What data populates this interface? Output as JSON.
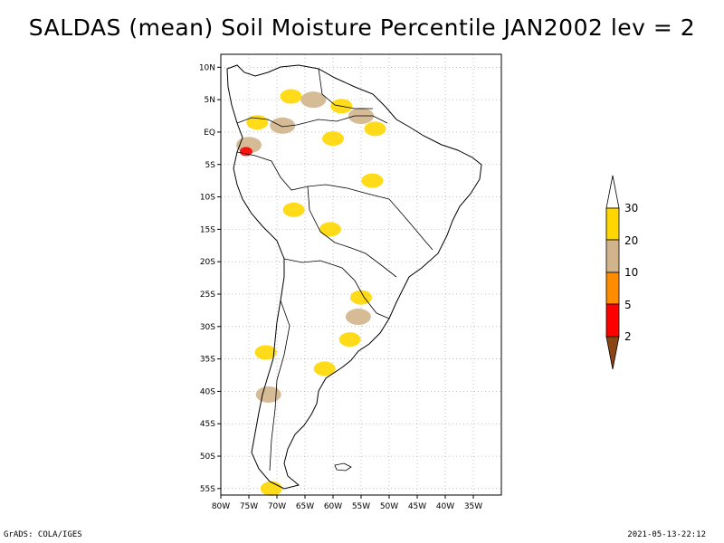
{
  "title": "SALDAS (mean) Soil Moisture Percentile JAN2002 lev = 2",
  "footer": {
    "left": "GrADS: COLA/IGES",
    "right": "2021-05-13-22:12"
  },
  "map": {
    "lon_range": [
      -80,
      -30
    ],
    "lat_range": [
      -56,
      12
    ],
    "x_ticks": [
      {
        "lon": -80,
        "label": "80W"
      },
      {
        "lon": -75,
        "label": "75W"
      },
      {
        "lon": -70,
        "label": "70W"
      },
      {
        "lon": -65,
        "label": "65W"
      },
      {
        "lon": -60,
        "label": "60W"
      },
      {
        "lon": -55,
        "label": "55W"
      },
      {
        "lon": -50,
        "label": "50W"
      },
      {
        "lon": -45,
        "label": "45W"
      },
      {
        "lon": -40,
        "label": "40W"
      },
      {
        "lon": -35,
        "label": "35W"
      }
    ],
    "y_ticks": [
      {
        "lat": 10,
        "label": "10N"
      },
      {
        "lat": 5,
        "label": "5N"
      },
      {
        "lat": 0,
        "label": "EQ"
      },
      {
        "lat": -5,
        "label": "5S"
      },
      {
        "lat": -10,
        "label": "10S"
      },
      {
        "lat": -15,
        "label": "15S"
      },
      {
        "lat": -20,
        "label": "20S"
      },
      {
        "lat": -25,
        "label": "25S"
      },
      {
        "lat": -30,
        "label": "30S"
      },
      {
        "lat": -35,
        "label": "35S"
      },
      {
        "lat": -40,
        "label": "40S"
      },
      {
        "lat": -45,
        "label": "45S"
      },
      {
        "lat": -50,
        "label": "50S"
      },
      {
        "lat": -55,
        "label": "55S"
      }
    ]
  },
  "colors": {
    "lt2": "#8b4513",
    "c2_5": "#ff0000",
    "c5_10": "#ff8c00",
    "c10_20": "#d2b48c",
    "c20_30": "#ffd700",
    "gt30": "#ffffff"
  },
  "legend": {
    "labels": [
      "30",
      "20",
      "10",
      "5",
      "2"
    ]
  },
  "anomalies": [
    {
      "cat": "c20_30",
      "lon": -67.5,
      "lat": 5.5
    },
    {
      "cat": "c10_20",
      "lon": -63.5,
      "lat": 5.0
    },
    {
      "cat": "c20_30",
      "lon": -58.5,
      "lat": 4.0
    },
    {
      "cat": "c10_20",
      "lon": -55.0,
      "lat": 2.5
    },
    {
      "cat": "c20_30",
      "lon": -52.5,
      "lat": 0.5
    },
    {
      "cat": "c10_20",
      "lon": -69.0,
      "lat": 1.0
    },
    {
      "cat": "c20_30",
      "lon": -73.5,
      "lat": 1.5
    },
    {
      "cat": "c10_20",
      "lon": -75.0,
      "lat": -2.0
    },
    {
      "cat": "c2_5",
      "lon": -75.5,
      "lat": -3.0
    },
    {
      "cat": "c20_30",
      "lon": -60.0,
      "lat": -1.0
    },
    {
      "cat": "c20_30",
      "lon": -53.0,
      "lat": -7.5
    },
    {
      "cat": "c20_30",
      "lon": -67.0,
      "lat": -12.0
    },
    {
      "cat": "c20_30",
      "lon": -60.5,
      "lat": -15.0
    },
    {
      "cat": "c10_20",
      "lon": -55.5,
      "lat": -28.5
    },
    {
      "cat": "c20_30",
      "lon": -55.0,
      "lat": -25.5
    },
    {
      "cat": "c20_30",
      "lon": -57.0,
      "lat": -32.0
    },
    {
      "cat": "c20_30",
      "lon": -61.5,
      "lat": -36.5
    },
    {
      "cat": "c10_20",
      "lon": -71.5,
      "lat": -40.5
    },
    {
      "cat": "c20_30",
      "lon": -72.0,
      "lat": -34.0
    },
    {
      "cat": "c20_30",
      "lon": -71.0,
      "lat": -55.0
    }
  ]
}
